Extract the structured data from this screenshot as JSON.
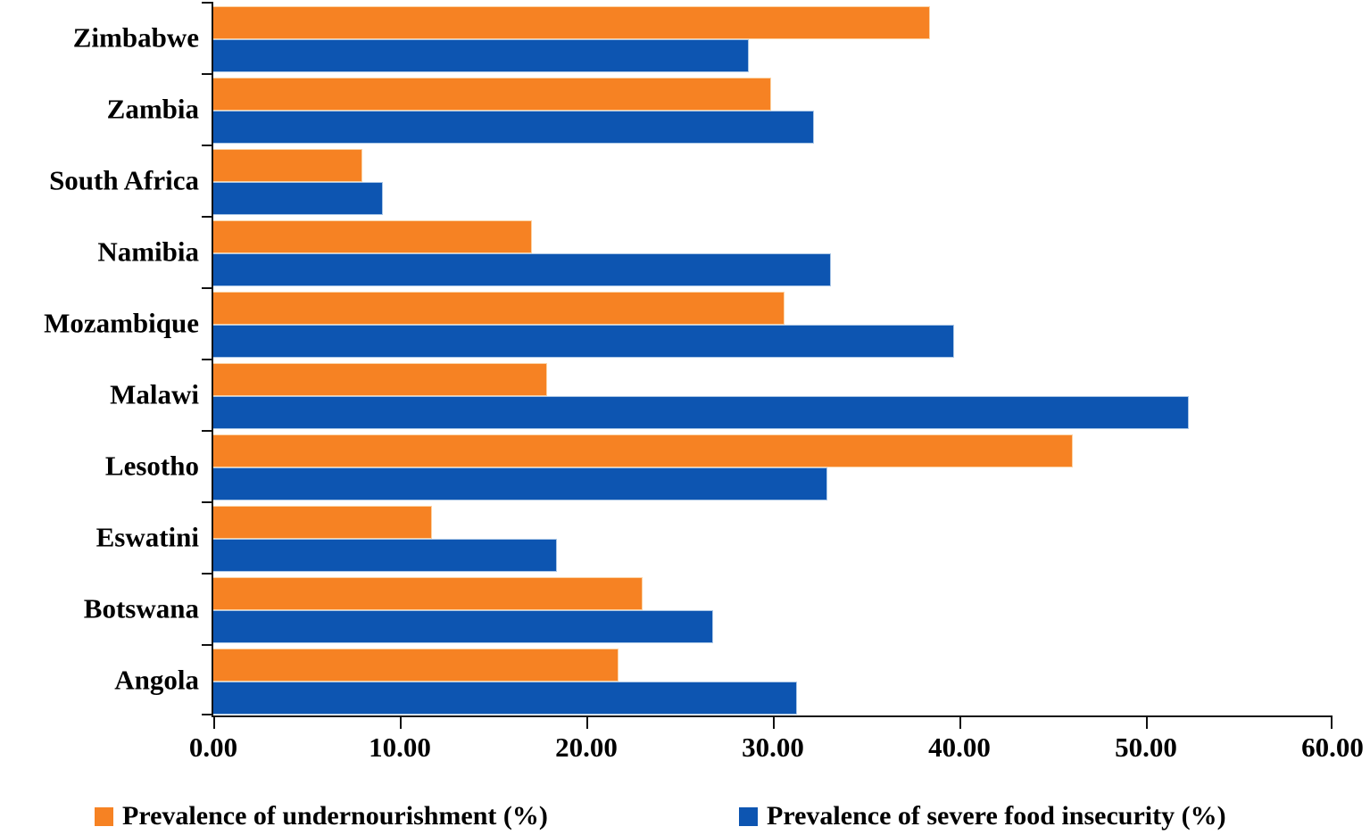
{
  "chart_data": {
    "type": "bar",
    "orientation": "horizontal",
    "title": "",
    "xlabel": "",
    "ylabel": "",
    "xlim": [
      0,
      60
    ],
    "x_ticks": [
      "0.00",
      "10.00",
      "20.00",
      "30.00",
      "40.00",
      "50.00",
      "60.00"
    ],
    "x_tick_values": [
      0,
      10,
      20,
      30,
      40,
      50,
      60
    ],
    "grid": false,
    "legend_position": "bottom",
    "categories": [
      "Zimbabwe",
      "Zambia",
      "South Africa",
      "Namibia",
      "Mozambique",
      "Malawi",
      "Lesotho",
      "Eswatini",
      "Botswana",
      "Angola"
    ],
    "series": [
      {
        "name": "Prevalence of undernourishment (%)",
        "color": "#F68223",
        "values": [
          38.4,
          29.9,
          8.0,
          17.1,
          30.6,
          17.9,
          46.1,
          11.7,
          23.0,
          21.7
        ]
      },
      {
        "name": "Prevalence of severe food insecurity (%)",
        "color": "#0D55B1",
        "values": [
          28.7,
          32.2,
          9.1,
          33.1,
          39.7,
          52.3,
          32.9,
          18.4,
          26.8,
          31.3
        ]
      }
    ]
  },
  "legend": {
    "items": [
      {
        "label": "Prevalence of undernourishment (%)",
        "color": "#F68223"
      },
      {
        "label": "Prevalence of severe food insecurity (%)",
        "color": "#0D55B1"
      }
    ]
  },
  "axis_color": "#111111"
}
